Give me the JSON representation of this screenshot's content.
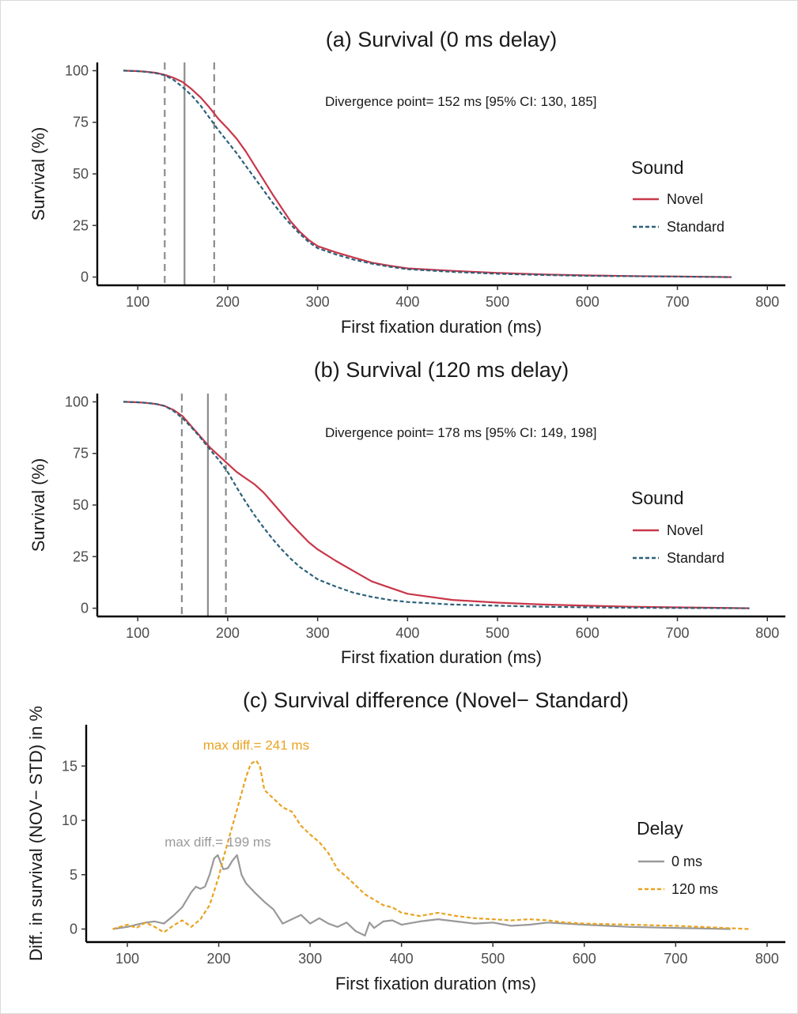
{
  "chart_data": [
    {
      "panel": "a",
      "type": "line",
      "title": "(a) Survival (0 ms delay)",
      "xlabel": "First fixation duration (ms)",
      "ylabel": "Survival (%)",
      "xlim": [
        55,
        820
      ],
      "ylim": [
        -4,
        104
      ],
      "xticks": [
        100,
        200,
        300,
        400,
        500,
        600,
        700,
        800
      ],
      "yticks": [
        0,
        25,
        50,
        75,
        100
      ],
      "grid": false,
      "annotation": "Divergence point= 152 ms [95% CI: 130, 185]",
      "divergence_point": 152,
      "ci": [
        130,
        185
      ],
      "legend": {
        "title": "Sound",
        "position": "right"
      },
      "series": [
        {
          "name": "Novel",
          "color": "#c8374a",
          "dash": "solid",
          "x": [
            84,
            100,
            110,
            120,
            130,
            140,
            150,
            160,
            170,
            180,
            190,
            200,
            210,
            220,
            230,
            240,
            250,
            260,
            270,
            280,
            290,
            300,
            320,
            340,
            360,
            380,
            400,
            450,
            500,
            550,
            600,
            650,
            700,
            760
          ],
          "y": [
            100,
            99.8,
            99.5,
            99,
            98,
            96.5,
            94.5,
            91,
            87,
            82,
            76.5,
            72,
            67,
            61,
            54,
            47,
            40,
            33.5,
            27,
            22,
            18,
            15,
            12,
            9.5,
            7,
            5.5,
            4.2,
            3,
            2,
            1.3,
            0.8,
            0.5,
            0.3,
            0
          ]
        },
        {
          "name": "Standard",
          "color": "#2b6179",
          "dash": "dashed",
          "x": [
            84,
            100,
            110,
            120,
            130,
            140,
            150,
            160,
            170,
            180,
            190,
            200,
            210,
            220,
            230,
            240,
            250,
            260,
            270,
            280,
            290,
            300,
            320,
            340,
            360,
            380,
            400,
            450,
            500,
            550,
            600,
            650,
            700,
            760
          ],
          "y": [
            100,
            99.8,
            99.4,
            98.8,
            97.8,
            95.5,
            92,
            88,
            83,
            77,
            71,
            65.5,
            60,
            54,
            48,
            42,
            36,
            30.5,
            25.5,
            21,
            17,
            14,
            11,
            8.5,
            6.5,
            5,
            3.8,
            2.5,
            1.6,
            1,
            0.6,
            0.4,
            0.2,
            0
          ]
        }
      ]
    },
    {
      "panel": "b",
      "type": "line",
      "title": "(b) Survival (120 ms delay)",
      "xlabel": "First fixation duration (ms)",
      "ylabel": "Survival (%)",
      "xlim": [
        55,
        820
      ],
      "ylim": [
        -4,
        104
      ],
      "xticks": [
        100,
        200,
        300,
        400,
        500,
        600,
        700,
        800
      ],
      "yticks": [
        0,
        25,
        50,
        75,
        100
      ],
      "grid": false,
      "annotation": "Divergence point= 178 ms [95% CI: 149, 198]",
      "divergence_point": 178,
      "ci": [
        149,
        198
      ],
      "legend": {
        "title": "Sound",
        "position": "right"
      },
      "series": [
        {
          "name": "Novel",
          "color": "#c8374a",
          "dash": "solid",
          "x": [
            84,
            100,
            110,
            120,
            130,
            140,
            150,
            160,
            170,
            180,
            190,
            200,
            210,
            220,
            230,
            240,
            250,
            260,
            270,
            280,
            290,
            300,
            320,
            340,
            360,
            380,
            400,
            450,
            500,
            550,
            600,
            650,
            700,
            780
          ],
          "y": [
            100,
            99.8,
            99.5,
            99,
            98,
            96,
            93,
            88,
            83,
            78,
            74,
            70,
            66,
            63,
            60,
            56,
            51,
            46,
            41,
            36.5,
            32,
            28.5,
            23,
            18,
            13,
            10,
            7,
            4,
            2.7,
            1.8,
            1.2,
            0.7,
            0.4,
            0
          ]
        },
        {
          "name": "Standard",
          "color": "#2b6179",
          "dash": "dashed",
          "x": [
            84,
            100,
            110,
            120,
            130,
            140,
            150,
            160,
            170,
            180,
            190,
            200,
            210,
            220,
            230,
            240,
            250,
            260,
            270,
            280,
            290,
            300,
            320,
            340,
            360,
            380,
            400,
            450,
            500,
            550,
            600,
            650,
            700,
            780
          ],
          "y": [
            100,
            99.8,
            99.5,
            99,
            98,
            95.5,
            92,
            87.5,
            82.5,
            77,
            72,
            66,
            58.5,
            51.5,
            45,
            39,
            33.5,
            28.5,
            24,
            20,
            17,
            14,
            10.5,
            7.5,
            5.5,
            4,
            3,
            1.8,
            1.2,
            0.7,
            0.4,
            0.2,
            0.1,
            0
          ]
        }
      ]
    },
    {
      "panel": "c",
      "type": "line",
      "title": "(c) Survival difference (Novel− Standard)",
      "xlabel": "First fixation duration (ms)",
      "ylabel": "Diff. in survival (NOV− STD) in %",
      "xlim": [
        55,
        820
      ],
      "ylim": [
        -1.2,
        18.8
      ],
      "xticks": [
        100,
        200,
        300,
        400,
        500,
        600,
        700,
        800
      ],
      "yticks": [
        0,
        5,
        10,
        15
      ],
      "grid": false,
      "legend": {
        "title": "Delay",
        "position": "right"
      },
      "annotations": [
        {
          "text": "max diff.= 241 ms",
          "x": 241,
          "y": 16.5,
          "color": "#e8a320"
        },
        {
          "text": "max diff.= 199 ms",
          "x": 199,
          "y": 7.6,
          "color": "#9a9a9a"
        }
      ],
      "series": [
        {
          "name": "0 ms",
          "color": "#999999",
          "dash": "solid",
          "x": [
            84,
            100,
            110,
            120,
            130,
            140,
            150,
            160,
            170,
            175,
            180,
            185,
            190,
            195,
            199,
            205,
            210,
            215,
            220,
            225,
            230,
            240,
            250,
            260,
            270,
            280,
            290,
            300,
            310,
            320,
            330,
            340,
            350,
            360,
            365,
            370,
            380,
            390,
            400,
            420,
            440,
            460,
            480,
            500,
            520,
            540,
            560,
            580,
            600,
            650,
            700,
            760
          ],
          "y": [
            0,
            0.2,
            0.4,
            0.6,
            0.7,
            0.5,
            1.2,
            2.0,
            3.4,
            3.9,
            3.7,
            3.9,
            5.0,
            6.5,
            6.8,
            5.5,
            5.6,
            6.3,
            6.8,
            5.0,
            4.2,
            3.3,
            2.5,
            1.8,
            0.5,
            0.9,
            1.3,
            0.5,
            1.0,
            0.5,
            0.2,
            0.6,
            -0.2,
            -0.6,
            0.6,
            0.1,
            0.7,
            0.8,
            0.4,
            0.7,
            0.9,
            0.7,
            0.5,
            0.6,
            0.3,
            0.4,
            0.6,
            0.5,
            0.4,
            0.2,
            0.1,
            0
          ]
        },
        {
          "name": "120 ms",
          "color": "#e8a320",
          "dash": "dashed",
          "x": [
            84,
            100,
            110,
            120,
            130,
            140,
            150,
            160,
            170,
            180,
            190,
            200,
            205,
            210,
            220,
            230,
            235,
            241,
            245,
            250,
            260,
            270,
            280,
            290,
            300,
            310,
            320,
            330,
            340,
            350,
            360,
            370,
            380,
            390,
            400,
            420,
            440,
            460,
            480,
            500,
            520,
            540,
            560,
            580,
            600,
            650,
            700,
            780
          ],
          "y": [
            0,
            0.4,
            0.1,
            0.6,
            0.2,
            -0.3,
            0.3,
            0.8,
            0.2,
            0.9,
            2.2,
            4.8,
            6.5,
            8.0,
            11.0,
            14.0,
            15.2,
            15.5,
            15.0,
            12.8,
            12.0,
            11.2,
            10.8,
            9.5,
            8.7,
            8.0,
            7.0,
            5.5,
            4.8,
            4.0,
            3.2,
            2.7,
            2.2,
            2.0,
            1.5,
            1.2,
            1.5,
            1.2,
            1.0,
            0.9,
            0.8,
            0.9,
            0.8,
            0.6,
            0.5,
            0.4,
            0.3,
            0
          ]
        }
      ]
    }
  ],
  "style": {
    "novel_color": "#c8374a",
    "standard_color": "#2b6179",
    "delay0_color": "#999999",
    "delay120_color": "#e8a320",
    "divergence_line_color": "#8c8c8c",
    "axis_color": "#000000"
  }
}
